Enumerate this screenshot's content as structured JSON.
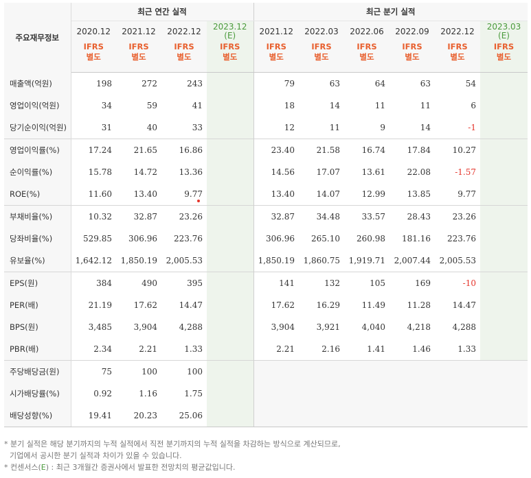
{
  "headers": {
    "corner": "주요재무정보",
    "annual_section": "최근 연간 실적",
    "quarter_section": "최근 분기 실적",
    "annual_periods": [
      "2020.12",
      "2021.12",
      "2022.12",
      "2023.12"
    ],
    "annual_est_mark": "(E)",
    "quarter_periods": [
      "2021.12",
      "2022.03",
      "2022.06",
      "2022.09",
      "2022.12",
      "2023.03"
    ],
    "quarter_est_mark": "(E)",
    "ifrs_line1": "IFRS",
    "ifrs_line2": "별도"
  },
  "rows": [
    {
      "label": "매출액(억원)",
      "annual": [
        "198",
        "272",
        "243",
        ""
      ],
      "quarter": [
        "79",
        "63",
        "64",
        "63",
        "54",
        ""
      ]
    },
    {
      "label": "영업이익(억원)",
      "annual": [
        "34",
        "59",
        "41",
        ""
      ],
      "quarter": [
        "18",
        "14",
        "11",
        "11",
        "6",
        ""
      ]
    },
    {
      "label": "당기순이익(억원)",
      "annual": [
        "31",
        "40",
        "33",
        ""
      ],
      "quarter": [
        "12",
        "11",
        "9",
        "14",
        "-1",
        ""
      ]
    },
    {
      "label": "영업이익률(%)",
      "annual": [
        "17.24",
        "21.65",
        "16.86",
        ""
      ],
      "quarter": [
        "23.40",
        "21.58",
        "16.74",
        "17.84",
        "10.27",
        ""
      ]
    },
    {
      "label": "순이익률(%)",
      "annual": [
        "15.78",
        "14.72",
        "13.36",
        ""
      ],
      "quarter": [
        "14.56",
        "17.07",
        "13.61",
        "22.08",
        "-1.57",
        ""
      ]
    },
    {
      "label": "ROE(%)",
      "annual": [
        "11.60",
        "13.40",
        "9.77",
        ""
      ],
      "quarter": [
        "13.40",
        "14.07",
        "12.99",
        "13.85",
        "9.77",
        ""
      ]
    },
    {
      "label": "부채비율(%)",
      "annual": [
        "10.32",
        "32.87",
        "23.26",
        ""
      ],
      "quarter": [
        "32.87",
        "34.48",
        "33.57",
        "28.43",
        "23.26",
        ""
      ]
    },
    {
      "label": "당좌비율(%)",
      "annual": [
        "529.85",
        "306.96",
        "223.76",
        ""
      ],
      "quarter": [
        "306.96",
        "265.10",
        "260.98",
        "181.16",
        "223.76",
        ""
      ]
    },
    {
      "label": "유보율(%)",
      "annual": [
        "1,642.12",
        "1,850.19",
        "2,005.53",
        ""
      ],
      "quarter": [
        "1,850.19",
        "1,860.75",
        "1,919.71",
        "2,007.44",
        "2,005.53",
        ""
      ]
    },
    {
      "label": "EPS(원)",
      "annual": [
        "384",
        "490",
        "395",
        ""
      ],
      "quarter": [
        "141",
        "132",
        "105",
        "169",
        "-10",
        ""
      ]
    },
    {
      "label": "PER(배)",
      "annual": [
        "21.19",
        "17.62",
        "14.47",
        ""
      ],
      "quarter": [
        "17.62",
        "16.29",
        "11.49",
        "11.28",
        "14.47",
        ""
      ]
    },
    {
      "label": "BPS(원)",
      "annual": [
        "3,485",
        "3,904",
        "4,288",
        ""
      ],
      "quarter": [
        "3,904",
        "3,921",
        "4,040",
        "4,218",
        "4,288",
        ""
      ]
    },
    {
      "label": "PBR(배)",
      "annual": [
        "2.34",
        "2.21",
        "1.33",
        ""
      ],
      "quarter": [
        "2.21",
        "2.16",
        "1.41",
        "1.46",
        "1.33",
        ""
      ]
    },
    {
      "label": "주당배당금(원)",
      "annual": [
        "75",
        "100",
        "100",
        ""
      ],
      "quarter": [
        "",
        "",
        "",
        "",
        "",
        ""
      ]
    },
    {
      "label": "시가배당률(%)",
      "annual": [
        "0.92",
        "1.16",
        "1.75",
        ""
      ],
      "quarter": [
        "",
        "",
        "",
        "",
        "",
        ""
      ]
    },
    {
      "label": "배당성향(%)",
      "annual": [
        "19.41",
        "20.23",
        "25.06",
        ""
      ],
      "quarter": [
        "",
        "",
        "",
        "",
        "",
        ""
      ]
    }
  ],
  "notes": {
    "line1": "* 분기 실적은 해당 분기까지의 누적 실적에서 직전 분기까지의 누적 실적을 차감하는 방식으로 계산되므로,",
    "line2": "기업에서 공시한 분기 실적과 차이가 있을 수 있습니다.",
    "line3_prefix": "* 컨센서스(",
    "line3_e": "E",
    "line3_suffix": ") : 최근 3개월간 증권사에서 발표한 전망치의 평균값입니다."
  },
  "colors": {
    "ifrs_accent": "#e8602f",
    "estimate_green": "#4a9a3c",
    "negative_red": "#e5332a",
    "estimate_bg": "#eef4ec",
    "header_bg": "#f7f7f7"
  }
}
